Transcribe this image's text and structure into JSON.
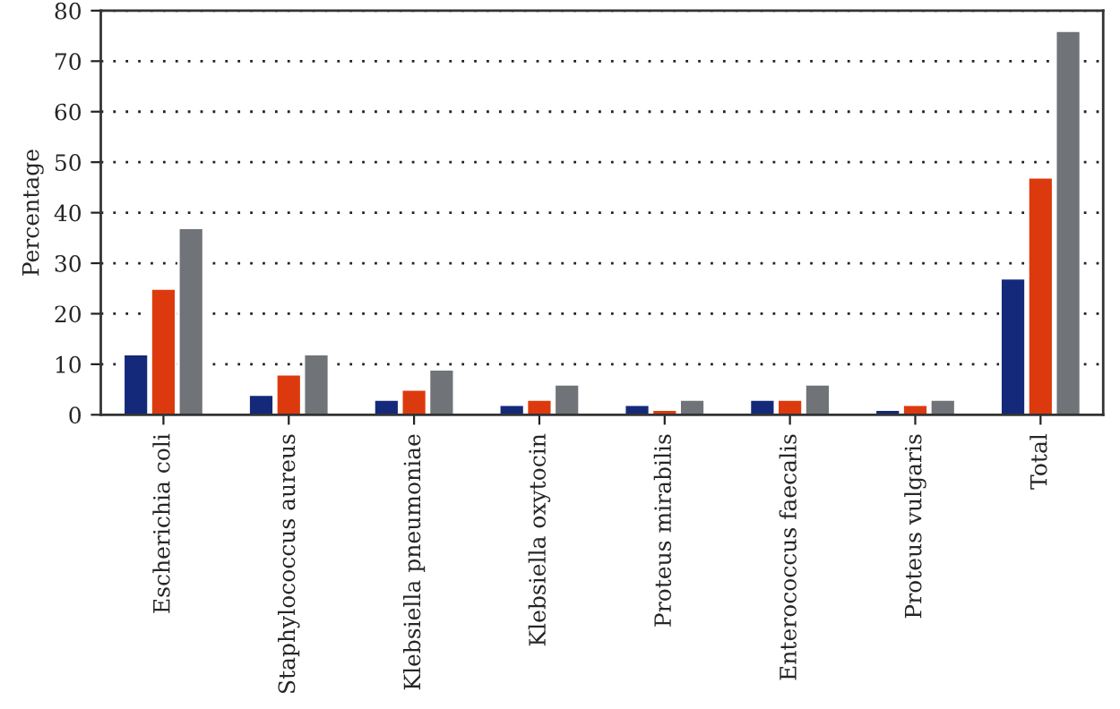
{
  "chart_data": {
    "type": "bar",
    "ylabel": "Percentage",
    "categories": [
      "Escherichia coli",
      "Staphylococcus aureus",
      "Klebsiella pneumoniae",
      "Klebsiella oxytocin",
      "Proteus mirabilis",
      "Enterococcus faecalis",
      "Proteus vulgaris",
      "Total"
    ],
    "series": [
      {
        "color": "#14297a",
        "values": [
          12,
          4,
          3,
          2,
          2,
          3,
          1,
          27
        ]
      },
      {
        "color": "#dc3a0e",
        "values": [
          25,
          8,
          5,
          3,
          1,
          3,
          2,
          47
        ]
      },
      {
        "color": "#707377",
        "values": [
          37,
          12,
          9,
          6,
          3,
          6,
          3,
          76
        ]
      }
    ],
    "ylim": [
      0,
      80
    ],
    "yticks": [
      0,
      10,
      20,
      30,
      40,
      50,
      60,
      70,
      80
    ],
    "grid": "y",
    "legend": false
  }
}
